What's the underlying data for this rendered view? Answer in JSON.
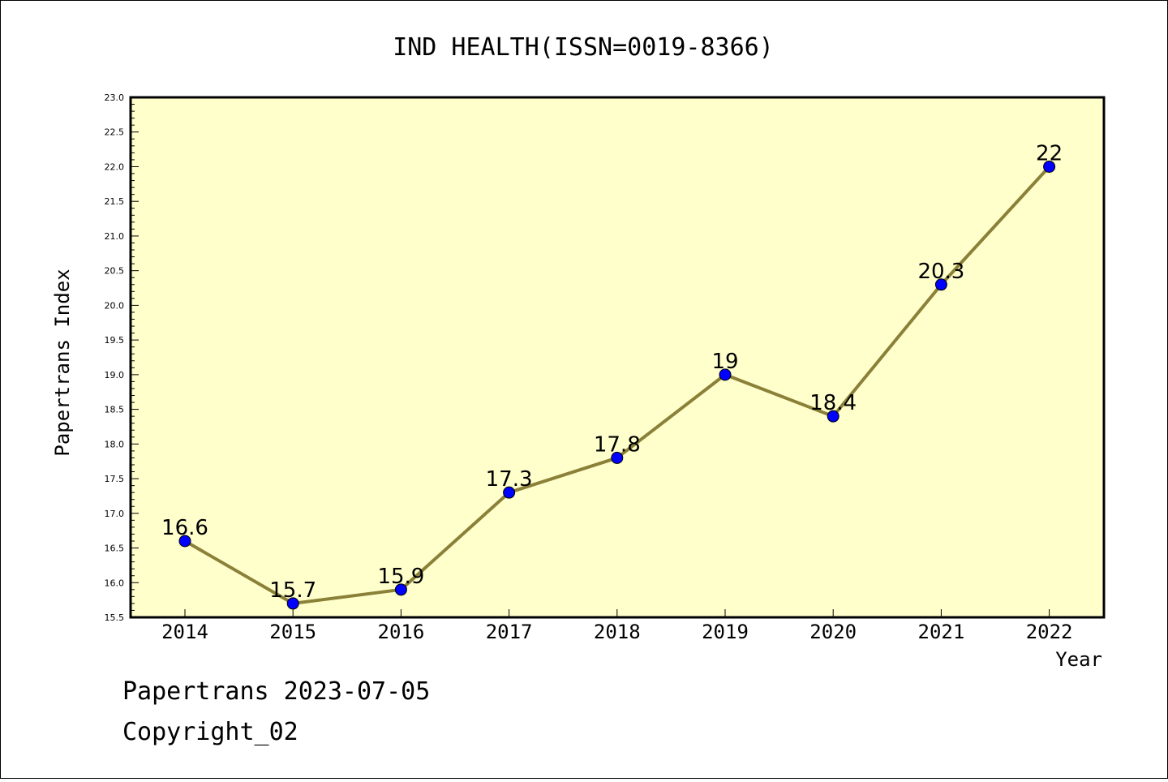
{
  "chart_data": {
    "type": "line",
    "title": "IND HEALTH(ISSN=0019-8366)",
    "xlabel": "Year",
    "ylabel": "Papertrans Index",
    "categories": [
      "2014",
      "2015",
      "2016",
      "2017",
      "2018",
      "2019",
      "2020",
      "2021",
      "2022"
    ],
    "series": [
      {
        "values": [
          16.6,
          15.7,
          15.9,
          17.3,
          17.8,
          19,
          18.4,
          20.3,
          22
        ],
        "labels": [
          "16.6",
          "15.7",
          "15.9",
          "17.3",
          "17.8",
          "19",
          "18.4",
          "20.3",
          "22"
        ]
      }
    ],
    "ylim": [
      15.5,
      23.0
    ],
    "yticks": [
      "15.5",
      "16.0",
      "16.5",
      "17.0",
      "17.5",
      "18.0",
      "18.5",
      "19.0",
      "19.5",
      "20.0",
      "20.5",
      "21.0",
      "21.5",
      "22.0",
      "22.5",
      "23.0"
    ],
    "grid": false,
    "colors": {
      "plot_background": "#ffffcc",
      "line": "#8b8038",
      "marker": "#0000ff"
    }
  },
  "footer": {
    "line1": "Papertrans 2023-07-05",
    "line2": "Copyright_02"
  }
}
